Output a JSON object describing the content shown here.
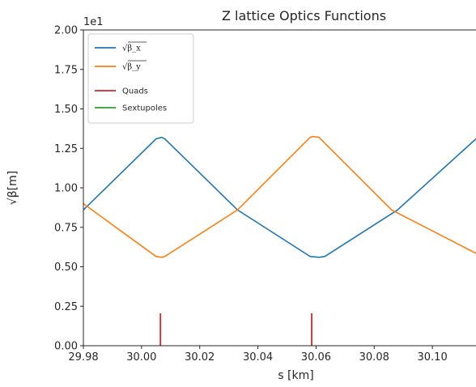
{
  "chart_data": {
    "type": "line",
    "title": "Z lattice Optics Functions",
    "xlabel": "s [km]",
    "ylabel": "√β[m]",
    "offset_text": "1e1",
    "xlim": [
      29.98,
      30.115
    ],
    "ylim": [
      0,
      2.0
    ],
    "x_ticks": [
      "29.98",
      "30.00",
      "30.02",
      "30.04",
      "30.06",
      "30.08",
      "30.10"
    ],
    "x_tick_values": [
      29.98,
      30.0,
      30.02,
      30.04,
      30.06,
      30.08,
      30.1
    ],
    "y_ticks": [
      "0.00",
      "0.25",
      "0.50",
      "0.75",
      "1.00",
      "1.25",
      "1.50",
      "1.75",
      "2.00"
    ],
    "y_tick_values": [
      0.0,
      0.25,
      0.5,
      0.75,
      1.0,
      1.25,
      1.5,
      1.75,
      2.0
    ],
    "series": [
      {
        "name": "√β_x",
        "color": "#1f77b4",
        "x": [
          29.98,
          30.005,
          30.007,
          30.008,
          30.033,
          30.058,
          30.061,
          30.063,
          30.088,
          30.115
        ],
        "y": [
          0.86,
          1.31,
          1.32,
          1.31,
          0.86,
          0.565,
          0.56,
          0.565,
          0.86,
          1.31
        ]
      },
      {
        "name": "√β_y",
        "color": "#ff7f0e",
        "x": [
          29.98,
          30.005,
          30.007,
          30.008,
          30.033,
          30.058,
          30.059,
          30.061,
          30.086,
          30.115
        ],
        "y": [
          0.9,
          0.565,
          0.56,
          0.565,
          0.86,
          1.32,
          1.325,
          1.32,
          0.86,
          0.585
        ]
      }
    ],
    "quads": {
      "name": "Quads",
      "color": "#d62728",
      "x": [
        30.0065,
        30.0585
      ],
      "height": 0.205
    },
    "sextupoles": {
      "name": "Sextupoles",
      "color": "#2ca02c"
    },
    "legend": {
      "position": "upper-left",
      "entries": [
        {
          "label": "√β_x",
          "color": "#1f77b4"
        },
        {
          "label": "√β_y",
          "color": "#ff7f0e"
        },
        {
          "label": "Quads",
          "color": "#d62728"
        },
        {
          "label": "Sextupoles",
          "color": "#2ca02c"
        }
      ]
    },
    "grid": false
  }
}
